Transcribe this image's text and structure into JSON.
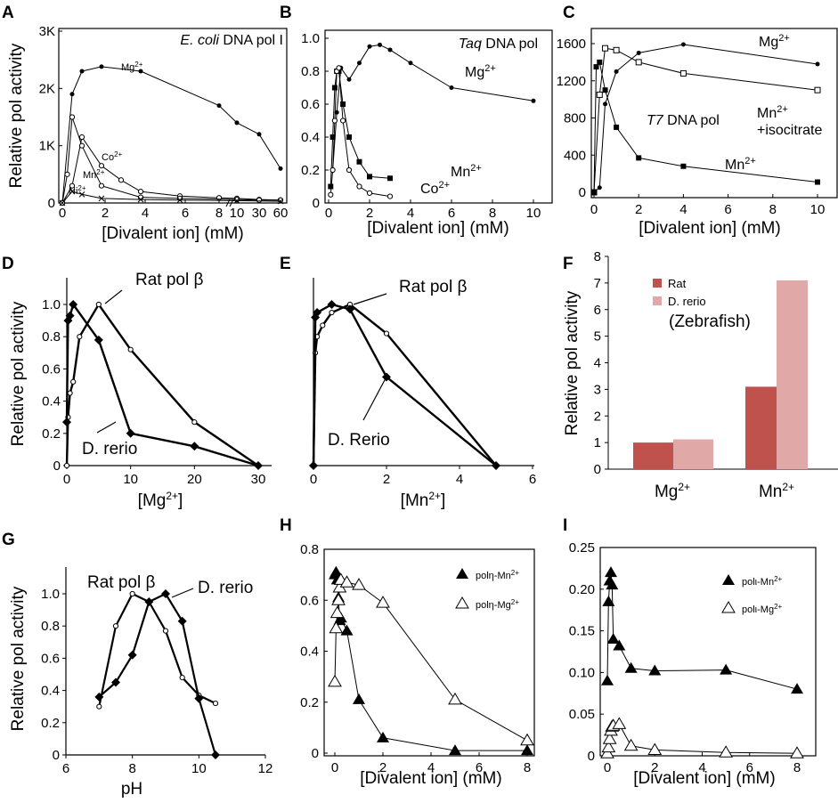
{
  "colors": {
    "rat": "#c0524e",
    "drerio": "#e0a8a7",
    "line": "#000000"
  },
  "chart_data": [
    {
      "panel": "A",
      "type": "line",
      "title": "E. coli DNA pol I",
      "xlabel": "[Divalent ion] (mM)",
      "ylabel": "Relative pol activity",
      "x_ticks": [
        "0",
        "2",
        "4",
        "6",
        "8",
        "10",
        "30",
        "60"
      ],
      "y_ticks": [
        "0",
        "1K",
        "2K",
        "3K"
      ],
      "xlim": [
        0,
        70
      ],
      "ylim": [
        0,
        3000
      ],
      "series": [
        {
          "name": "Mg2+",
          "x": [
            0,
            0.5,
            1,
            2,
            4,
            8,
            10,
            30,
            60
          ],
          "y": [
            0,
            1900,
            2300,
            2380,
            2300,
            1700,
            1400,
            1200,
            600
          ]
        },
        {
          "name": "Co2+",
          "x": [
            0,
            0.5,
            1,
            2,
            3,
            4,
            6,
            8,
            10,
            30,
            60
          ],
          "y": [
            0,
            300,
            1150,
            650,
            400,
            200,
            120,
            90,
            80,
            60,
            50
          ]
        },
        {
          "name": "Mn2+",
          "x": [
            0,
            0.25,
            0.5,
            1,
            2,
            4,
            6,
            10,
            30,
            60
          ],
          "y": [
            0,
            500,
            1500,
            1000,
            300,
            100,
            80,
            60,
            50,
            50
          ]
        },
        {
          "name": "Ni2+",
          "x": [
            0,
            0.5,
            1,
            2,
            4,
            6,
            10,
            60
          ],
          "y": [
            0,
            200,
            150,
            80,
            60,
            50,
            40,
            30
          ]
        }
      ],
      "labels": {
        "title_italic": "E. coli",
        "title_rest": " DNA pol I",
        "mg": "Mg2+",
        "co": "Co2+",
        "mn": "Mn2+",
        "ni": "Ni2+"
      }
    },
    {
      "panel": "B",
      "type": "line",
      "title": "Taq DNA pol",
      "xlabel": "[Divalent ion] (mM)",
      "ylabel": "",
      "x_ticks": [
        "0",
        "2",
        "4",
        "6",
        "8",
        "10"
      ],
      "y_ticks": [
        "0",
        "0.2",
        "0.4",
        "0.6",
        "0.8",
        "1.0"
      ],
      "xlim": [
        0,
        10.5
      ],
      "ylim": [
        0,
        1.1
      ],
      "series": [
        {
          "name": "Mg2+",
          "x": [
            0.2,
            0.4,
            0.6,
            1,
            1.5,
            2,
            2.5,
            3,
            4,
            6,
            10
          ],
          "y": [
            0.2,
            0.55,
            0.82,
            0.75,
            0.85,
            0.95,
            0.96,
            0.93,
            0.85,
            0.7,
            0.62
          ]
        },
        {
          "name": "Mn2+",
          "x": [
            0.1,
            0.2,
            0.3,
            0.4,
            0.5,
            0.7,
            1,
            1.5,
            2,
            3
          ],
          "y": [
            0.1,
            0.4,
            0.7,
            0.8,
            0.8,
            0.6,
            0.4,
            0.25,
            0.16,
            0.15
          ]
        },
        {
          "name": "Co2+",
          "x": [
            0.1,
            0.2,
            0.3,
            0.4,
            0.5,
            0.7,
            1,
            1.5,
            2,
            3
          ],
          "y": [
            0.05,
            0.2,
            0.5,
            0.8,
            0.82,
            0.5,
            0.2,
            0.1,
            0.06,
            0.04
          ]
        }
      ],
      "labels": {
        "title_italic": "Taq",
        "title_rest": " DNA pol",
        "mg": "Mg2+",
        "mn": "Mn2+",
        "co": "Co2+"
      }
    },
    {
      "panel": "C",
      "type": "line",
      "title": "T7 DNA pol",
      "xlabel": "[Divalent ion] (mM)",
      "ylabel": "",
      "x_ticks": [
        "0",
        "2",
        "4",
        "6",
        "8",
        "10"
      ],
      "y_ticks": [
        "0",
        "400",
        "800",
        "1200",
        "1600"
      ],
      "xlim": [
        0,
        10.5
      ],
      "ylim": [
        0,
        1700
      ],
      "series": [
        {
          "name": "Mg2+",
          "x": [
            0,
            0.25,
            0.5,
            1,
            2,
            4,
            10
          ],
          "y": [
            0,
            50,
            950,
            1300,
            1500,
            1590,
            1380
          ]
        },
        {
          "name": "Mn2+ +isocitrate",
          "x": [
            0,
            0.25,
            0.5,
            1,
            2,
            4,
            10
          ],
          "y": [
            0,
            1050,
            1550,
            1530,
            1400,
            1280,
            1100
          ]
        },
        {
          "name": "Mn2+",
          "x": [
            0,
            0.1,
            0.25,
            0.5,
            1,
            2,
            4,
            10
          ],
          "y": [
            0,
            1350,
            1400,
            1100,
            700,
            370,
            280,
            110
          ]
        }
      ],
      "labels": {
        "title_italic": "T7",
        "title_rest": " DNA pol",
        "mg": "Mg2+",
        "mniso1": "Mn2+",
        "mniso2": "+isocitrate",
        "mn": "Mn2+"
      }
    },
    {
      "panel": "D",
      "type": "line",
      "xlabel": "[Mg2+]",
      "ylabel": "Relative pol activity",
      "x_ticks": [
        "0",
        "10",
        "20",
        "30"
      ],
      "y_ticks": [
        "0",
        "0.2",
        "0.4",
        "0.6",
        "0.8",
        "1.0"
      ],
      "xlim": [
        0,
        32
      ],
      "ylim": [
        0,
        1.15
      ],
      "series": [
        {
          "name": "Rat pol β",
          "x": [
            0,
            0.2,
            0.5,
            1,
            2,
            5,
            10,
            20,
            30
          ],
          "y": [
            0,
            0.3,
            0.45,
            0.52,
            0.8,
            1.0,
            0.72,
            0.27,
            0
          ]
        },
        {
          "name": "D. rerio",
          "x": [
            0,
            0.2,
            0.5,
            1,
            5,
            10,
            20,
            30
          ],
          "y": [
            0.27,
            0.9,
            0.93,
            1.0,
            0.78,
            0.2,
            0.12,
            0
          ]
        }
      ],
      "labels": {
        "rat": "Rat pol β",
        "drerio": "D. rerio"
      }
    },
    {
      "panel": "E",
      "type": "line",
      "xlabel": "[Mn2+]",
      "ylabel": "",
      "x_ticks": [
        "0",
        "2",
        "4",
        "6"
      ],
      "y_ticks": [],
      "xlim": [
        0,
        6
      ],
      "ylim": [
        0,
        1.15
      ],
      "series": [
        {
          "name": "Rat pol β",
          "x": [
            0,
            0.05,
            0.1,
            0.25,
            0.5,
            1,
            2,
            5
          ],
          "y": [
            0,
            0.7,
            0.8,
            0.87,
            0.95,
            1.0,
            0.82,
            0
          ]
        },
        {
          "name": "D. Rerio",
          "x": [
            0,
            0.05,
            0.1,
            0.5,
            1,
            2,
            5
          ],
          "y": [
            0,
            0.92,
            0.95,
            1.0,
            0.97,
            0.55,
            0
          ]
        }
      ],
      "labels": {
        "rat": "Rat pol β",
        "drerio": "D. Rerio"
      }
    },
    {
      "panel": "F",
      "type": "bar",
      "xlabel": "",
      "ylabel": "Relative pol activity",
      "categories": [
        "Mg2+",
        "Mn2+"
      ],
      "series": [
        {
          "name": "Rat",
          "values": [
            1.0,
            3.1
          ]
        },
        {
          "name": "D. rerio",
          "values": [
            1.12,
            7.1
          ]
        }
      ],
      "y_ticks": [
        "0",
        "1",
        "2",
        "3",
        "4",
        "5",
        "6",
        "7",
        "8"
      ],
      "ylim": [
        0,
        8
      ],
      "labels": {
        "rat": "Rat",
        "drerio": "D. rerio",
        "zebra": "(Zebrafish)"
      }
    },
    {
      "panel": "G",
      "type": "line",
      "xlabel": "pH",
      "ylabel": "Relative pol activity",
      "x_ticks": [
        "6",
        "8",
        "10",
        "12"
      ],
      "y_ticks": [
        "0",
        "0.2",
        "0.4",
        "0.6",
        "0.8",
        "1.0"
      ],
      "xlim": [
        6,
        12
      ],
      "ylim": [
        0,
        1.15
      ],
      "series": [
        {
          "name": "Rat pol β",
          "x": [
            7,
            7.5,
            8,
            8.5,
            9,
            9.5,
            10,
            10.5
          ],
          "y": [
            0.3,
            0.8,
            1.0,
            0.95,
            0.77,
            0.48,
            0.37,
            0.32
          ]
        },
        {
          "name": "D. rerio",
          "x": [
            7,
            7.5,
            8,
            8.5,
            9,
            9.5,
            10,
            10.5
          ],
          "y": [
            0.36,
            0.45,
            0.62,
            0.95,
            1.0,
            0.83,
            0.35,
            0
          ]
        }
      ],
      "labels": {
        "rat": "Rat pol β",
        "drerio": "D. rerio"
      }
    },
    {
      "panel": "H",
      "type": "line",
      "xlabel": "[Divalent ion] (mM)",
      "ylabel": "",
      "x_ticks": [
        "0",
        "2",
        "4",
        "6",
        "8"
      ],
      "y_ticks": [
        "0",
        "0.2",
        "0.4",
        "0.6",
        "0.8"
      ],
      "xlim": [
        -0.3,
        8.3
      ],
      "ylim": [
        0,
        0.8
      ],
      "series": [
        {
          "name": "polη-Mn2+",
          "x": [
            0,
            0.05,
            0.1,
            0.15,
            0.2,
            0.25,
            0.5,
            1,
            2,
            5,
            8
          ],
          "y": [
            0.7,
            0.71,
            0.68,
            0.61,
            0.52,
            0.53,
            0.48,
            0.21,
            0.06,
            0.01,
            0.01
          ]
        },
        {
          "name": "polη-Mg2+",
          "x": [
            0,
            0.05,
            0.1,
            0.15,
            0.2,
            0.25,
            0.5,
            1,
            2,
            5,
            8
          ],
          "y": [
            0.28,
            0.49,
            0.55,
            0.6,
            0.65,
            0.68,
            0.67,
            0.66,
            0.59,
            0.21,
            0.05
          ]
        }
      ],
      "labels": {
        "mn": "polη-Mn2+",
        "mg": "polη-Mg2+"
      }
    },
    {
      "panel": "I",
      "type": "line",
      "xlabel": "[Divalent ion] (mM)",
      "ylabel": "",
      "x_ticks": [
        "0",
        "2",
        "4",
        "6",
        "8"
      ],
      "y_ticks": [
        "0",
        "0.05",
        "0.10",
        "0.15",
        "0.20",
        "0.25"
      ],
      "xlim": [
        -0.3,
        8.3
      ],
      "ylim": [
        0,
        0.25
      ],
      "series": [
        {
          "name": "polι-Mn2+",
          "x": [
            0,
            0.05,
            0.1,
            0.15,
            0.2,
            0.25,
            0.5,
            1,
            2,
            5,
            8
          ],
          "y": [
            0.09,
            0.185,
            0.21,
            0.22,
            0.205,
            0.14,
            0.132,
            0.105,
            0.102,
            0.103,
            0.08
          ]
        },
        {
          "name": "polι-Mg2+",
          "x": [
            0,
            0.05,
            0.1,
            0.15,
            0.2,
            0.25,
            0.5,
            1,
            2,
            5,
            8
          ],
          "y": [
            0.003,
            0.01,
            0.02,
            0.03,
            0.035,
            0.036,
            0.038,
            0.012,
            0.007,
            0.004,
            0.003
          ]
        }
      ],
      "labels": {
        "mn": "polι-Mn2+",
        "mg": "polι-Mg2+"
      }
    }
  ]
}
